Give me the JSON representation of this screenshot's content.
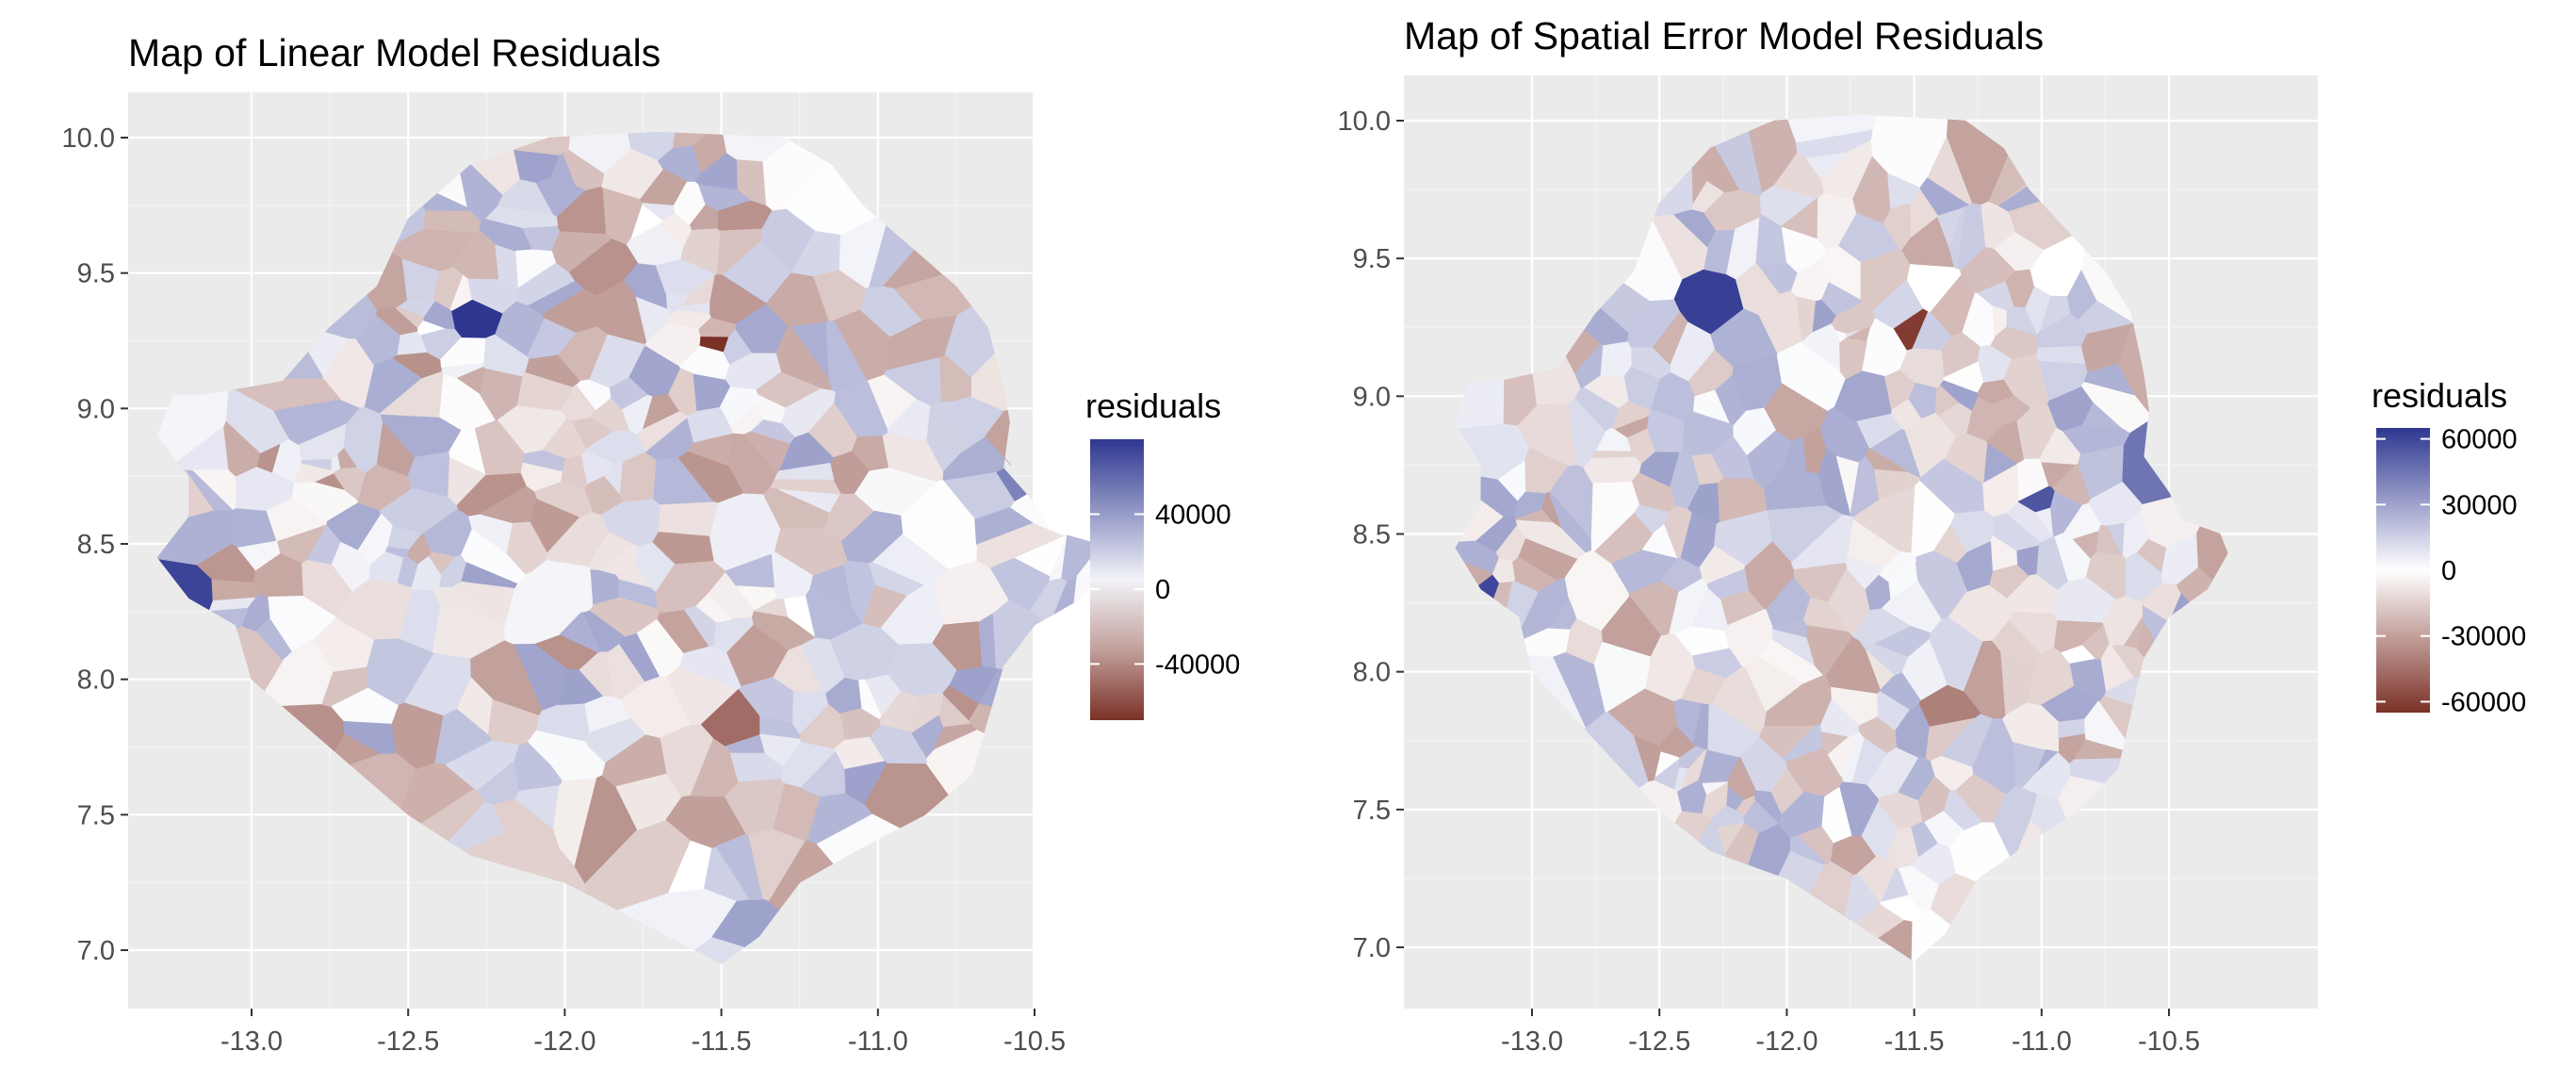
{
  "chart_data": [
    {
      "type": "heatmap",
      "subtype": "choropleth-map",
      "title": "Map of Linear Model Residuals",
      "xlabel": "",
      "ylabel": "",
      "xlim": [
        -13.45,
        -10.12
      ],
      "ylim": [
        6.78,
        10.15
      ],
      "x_ticks": [
        -13.0,
        -12.5,
        -12.0,
        -11.5,
        -11.0,
        -10.5
      ],
      "x_tick_labels": [
        "-13.0",
        "-12.5",
        "-12.0",
        "-11.5",
        "-11.0",
        "-10.5"
      ],
      "y_ticks": [
        7.0,
        7.5,
        8.0,
        8.5,
        9.0,
        9.5,
        10.0
      ],
      "y_tick_labels": [
        "7.0",
        "7.5",
        "8.0",
        "8.5",
        "9.0",
        "9.5",
        "10.0"
      ],
      "grid": true,
      "legend": {
        "title": "residuals",
        "placement": "right",
        "breaks": [
          40000,
          0,
          -40000
        ],
        "labels": [
          "40000",
          "0",
          "-40000"
        ],
        "range": [
          -70000,
          80000
        ]
      },
      "color_scale": {
        "low": "#7b3127",
        "mid": "#ffffff",
        "high": "#2e3790"
      },
      "extremes": [
        {
          "x": -11.52,
          "y": 9.25,
          "residual": -70000
        },
        {
          "x": -12.3,
          "y": 9.35,
          "residual": 80000
        },
        {
          "x": -13.18,
          "y": 8.31,
          "residual": 75000
        },
        {
          "x": -11.42,
          "y": 7.82,
          "residual": -50000
        },
        {
          "x": -10.57,
          "y": 8.72,
          "residual": 50000
        }
      ]
    },
    {
      "type": "heatmap",
      "subtype": "choropleth-map",
      "title": "Map of Spatial Error Model Residuals",
      "xlabel": "",
      "ylabel": "",
      "xlim": [
        -13.45,
        -10.12
      ],
      "ylim": [
        6.78,
        10.15
      ],
      "x_ticks": [
        -13.0,
        -12.5,
        -12.0,
        -11.5,
        -11.0,
        -10.5
      ],
      "x_tick_labels": [
        "-13.0",
        "-12.5",
        "-12.0",
        "-11.5",
        "-11.0",
        "-10.5"
      ],
      "y_ticks": [
        7.0,
        7.5,
        8.0,
        8.5,
        9.0,
        9.5,
        10.0
      ],
      "y_tick_labels": [
        "7.0",
        "7.5",
        "8.0",
        "8.5",
        "9.0",
        "9.5",
        "10.0"
      ],
      "grid": true,
      "legend": {
        "title": "residuals",
        "placement": "right",
        "breaks": [
          60000,
          30000,
          0,
          -30000,
          -60000
        ],
        "labels": [
          "60000",
          "30000",
          "0",
          "-30000",
          "-60000"
        ],
        "range": [
          -65000,
          65000
        ]
      },
      "color_scale": {
        "low": "#7b3127",
        "mid": "#ffffff",
        "high": "#2e3790"
      },
      "extremes": [
        {
          "x": -11.5,
          "y": 9.25,
          "residual": -62000
        },
        {
          "x": -12.28,
          "y": 9.35,
          "residual": 62000
        },
        {
          "x": -13.18,
          "y": 8.31,
          "residual": 60000
        },
        {
          "x": -11.4,
          "y": 7.84,
          "residual": -40000
        },
        {
          "x": -10.57,
          "y": 8.72,
          "residual": 45000
        },
        {
          "x": -11.0,
          "y": 8.6,
          "residual": 55000
        }
      ]
    }
  ]
}
